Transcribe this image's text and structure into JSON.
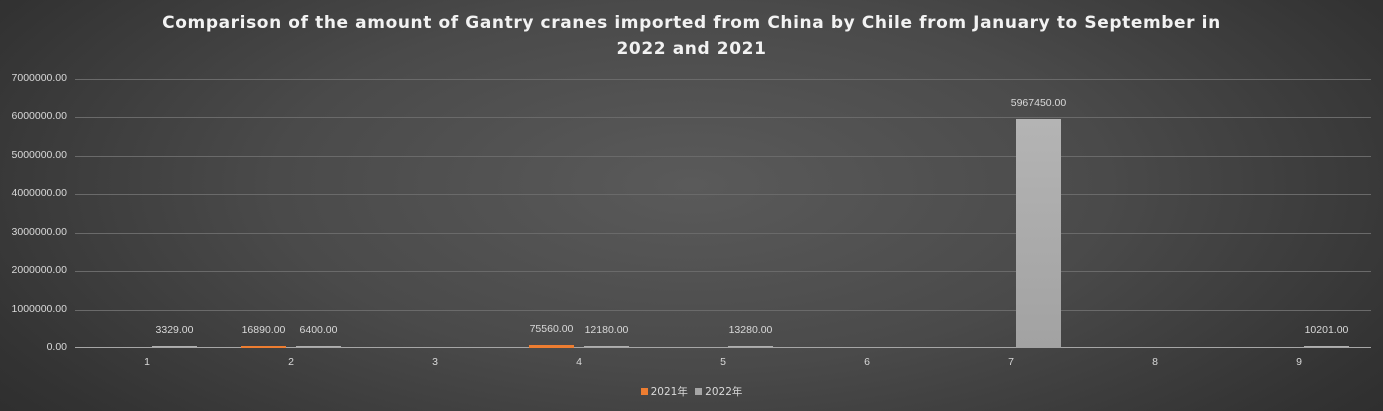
{
  "chart_data": {
    "type": "bar",
    "title": "Comparison of the amount of Gantry cranes imported from China by Chile from January to September in 2022 and 2021",
    "title_lines": [
      "Comparison of the amount of Gantry cranes imported from China by Chile from January to September in",
      "2022 and 2021"
    ],
    "xlabel": "",
    "ylabel": "",
    "categories": [
      "1",
      "2",
      "3",
      "4",
      "5",
      "6",
      "7",
      "8",
      "9"
    ],
    "series": [
      {
        "name": "2021年",
        "color": "#ed7d31",
        "values": [
          null,
          16890.0,
          null,
          75560.0,
          null,
          null,
          null,
          null,
          null
        ]
      },
      {
        "name": "2022年",
        "color": "#a5a5a5",
        "values": [
          3329.0,
          6400.0,
          null,
          12180.0,
          13280.0,
          null,
          5967450.0,
          null,
          10201.0
        ]
      }
    ],
    "data_labels": {
      "2021年": [
        "",
        "16890.00",
        "",
        "75560.00",
        "",
        "",
        "",
        "",
        ""
      ],
      "2022年": [
        "3329.00",
        "6400.00",
        "",
        "12180.00",
        "13280.00",
        "",
        "5967450.00",
        "",
        "10201.00"
      ]
    },
    "ylim": [
      0,
      7000000
    ],
    "yticks": [
      "0.00",
      "1000000.00",
      "2000000.00",
      "3000000.00",
      "4000000.00",
      "5000000.00",
      "6000000.00",
      "7000000.00"
    ],
    "grid": true,
    "legend_position": "bottom",
    "legend": [
      "2021年",
      "2022年"
    ]
  }
}
